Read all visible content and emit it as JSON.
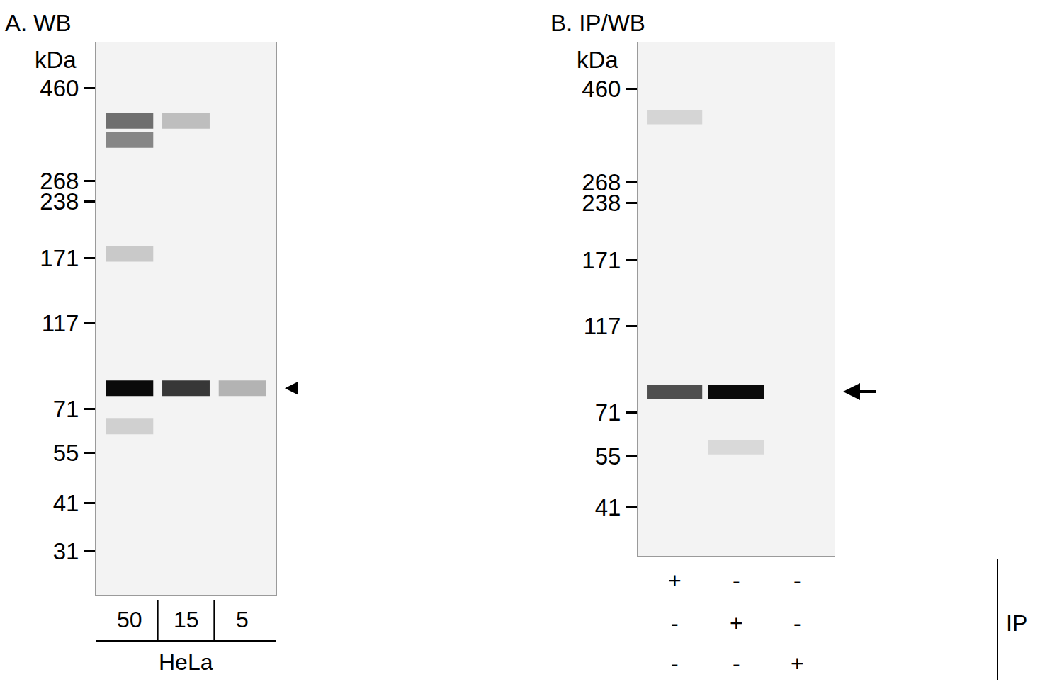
{
  "chart_data": [
    {
      "type": "blot",
      "title": "A. WB",
      "y_label": "kDa",
      "log": "y",
      "ylim": [
        24,
        600
      ],
      "yticks": [
        460,
        268,
        238,
        171,
        117,
        71,
        55,
        41,
        31
      ],
      "lanes": [
        "50",
        "15",
        "5"
      ],
      "lane_group": "HeLa",
      "bands": [
        {
          "lane": 0,
          "kda": 80,
          "intensity": 1.0
        },
        {
          "lane": 0,
          "kda": 380,
          "intensity": 0.55
        },
        {
          "lane": 0,
          "kda": 340,
          "intensity": 0.45
        },
        {
          "lane": 0,
          "kda": 175,
          "intensity": 0.15
        },
        {
          "lane": 0,
          "kda": 64,
          "intensity": 0.12
        },
        {
          "lane": 1,
          "kda": 80,
          "intensity": 0.8
        },
        {
          "lane": 1,
          "kda": 380,
          "intensity": 0.2
        },
        {
          "lane": 2,
          "kda": 80,
          "intensity": 0.25
        }
      ],
      "arrow_kda": 80
    },
    {
      "type": "blot",
      "title": "B. IP/WB",
      "y_label": "kDa",
      "log": "y",
      "ylim": [
        31,
        600
      ],
      "yticks": [
        460,
        268,
        238,
        171,
        117,
        71,
        55,
        41
      ],
      "ip_rows": [
        [
          "+",
          "-",
          "-"
        ],
        [
          "-",
          "+",
          "-"
        ],
        [
          "-",
          "-",
          "+"
        ]
      ],
      "ip_label": "IP",
      "bands": [
        {
          "lane": 0,
          "kda": 80,
          "intensity": 0.7
        },
        {
          "lane": 0,
          "kda": 390,
          "intensity": 0.1
        },
        {
          "lane": 1,
          "kda": 80,
          "intensity": 1.0
        },
        {
          "lane": 1,
          "kda": 58,
          "intensity": 0.08
        }
      ],
      "arrow_kda": 80
    }
  ]
}
